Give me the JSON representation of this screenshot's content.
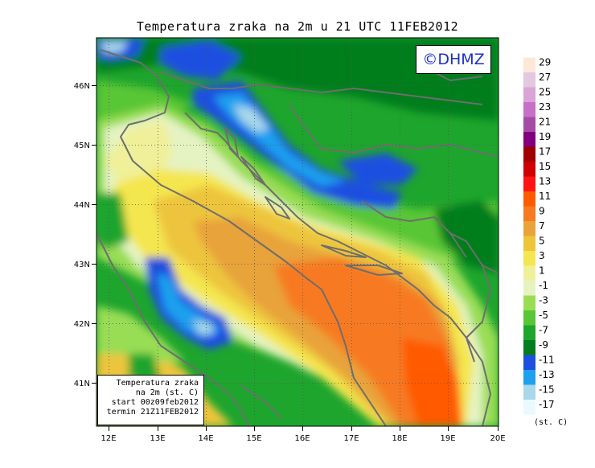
{
  "title": "Temperatura zraka na 2m u 21 UTC 11FEB2012",
  "logo": "©DHMZ",
  "info": {
    "line1": "Temperatura zraka",
    "line2": "na 2m (st. C)",
    "line3": "start 00z09feb2012",
    "line4": "termin 21Z11FEB2012"
  },
  "map": {
    "lon_range": [
      11.8,
      20
    ],
    "lat_range": [
      40.2,
      46.75
    ],
    "lon_ticks": [
      "12E",
      "13E",
      "14E",
      "15E",
      "16E",
      "17E",
      "18E",
      "19E",
      "20E"
    ],
    "lat_ticks": [
      "41N",
      "42N",
      "43N",
      "44N",
      "45N",
      "46N"
    ],
    "grid": true
  },
  "legend": {
    "unit": "(st. C)",
    "labels": [
      "29",
      "27",
      "25",
      "23",
      "21",
      "19",
      "17",
      "15",
      "13",
      "11",
      "9",
      "7",
      "5",
      "3",
      "1",
      "-1",
      "-3",
      "-5",
      "-7",
      "-9",
      "-11",
      "-13",
      "-15",
      "-17"
    ],
    "colors": [
      "#fde8d8",
      "#e3c8e0",
      "#dba3d6",
      "#c870c8",
      "#a64aa8",
      "#82007d",
      "#a00000",
      "#d10000",
      "#ff1414",
      "#ff5a00",
      "#f77a20",
      "#e8a33a",
      "#edc53d",
      "#f4e650",
      "#f0f09a",
      "#e5f3c3",
      "#99dd55",
      "#58c636",
      "#1ea52d",
      "#047e1c",
      "#1f4fe0",
      "#1ea0ee",
      "#a8d8ea",
      "#e9faff"
    ]
  }
}
